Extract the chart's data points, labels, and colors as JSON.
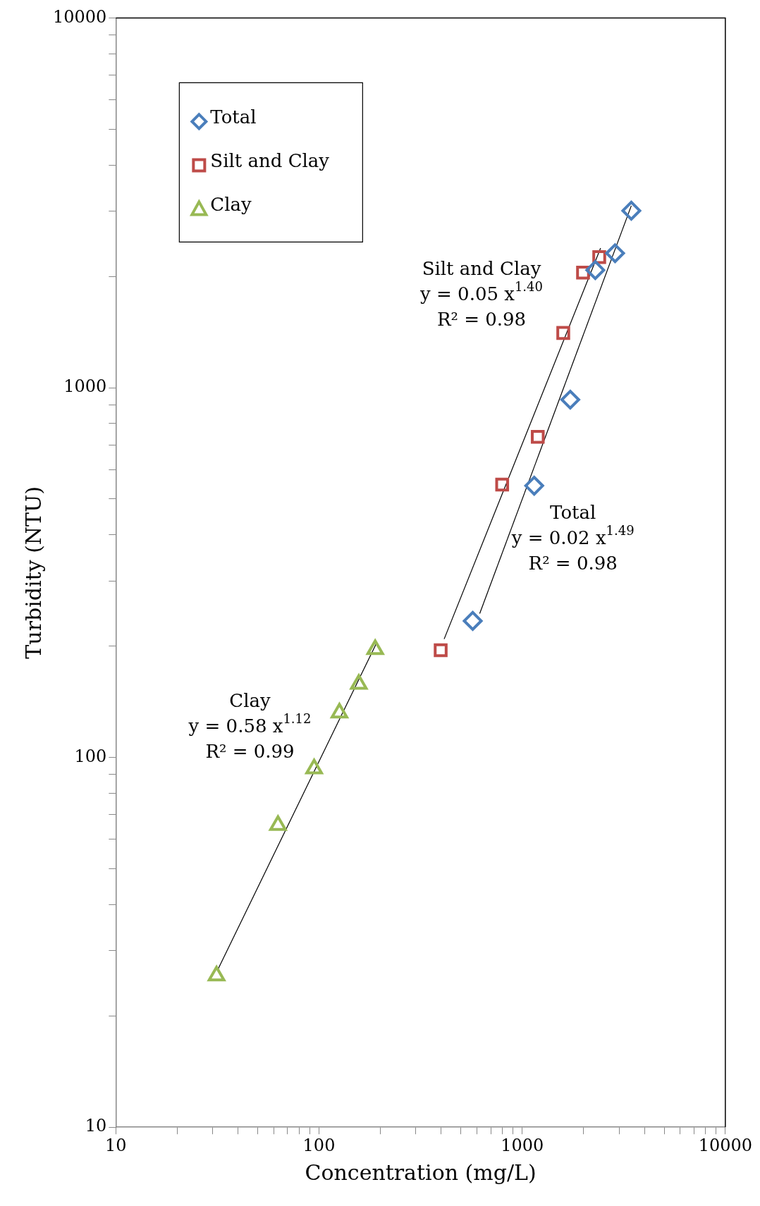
{
  "chart_data": {
    "type": "scatter",
    "xlabel": "Concentration (mg/L)",
    "ylabel": "Turbidity (NTU)",
    "xlim": [
      10,
      10000
    ],
    "ylim": [
      10,
      10000
    ],
    "log": "xy",
    "grid": false,
    "legend": "top left",
    "xticks": [
      10,
      {
        "value": 20,
        "label": null
      },
      {
        "value": 30,
        "label": null
      },
      {
        "value": 40,
        "label": null
      },
      {
        "value": 50,
        "label": null
      },
      {
        "value": 60,
        "label": null
      },
      {
        "value": 70,
        "label": null
      },
      {
        "value": 80,
        "label": null
      },
      {
        "value": 90,
        "label": null
      },
      100,
      {
        "value": 200,
        "label": null
      },
      {
        "value": 300,
        "label": null
      },
      {
        "value": 400,
        "label": null
      },
      {
        "value": 500,
        "label": null
      },
      {
        "value": 600,
        "label": null
      },
      {
        "value": 700,
        "label": null
      },
      {
        "value": 800,
        "label": null
      },
      {
        "value": 900,
        "label": null
      },
      1000,
      {
        "value": 2000,
        "label": null
      },
      {
        "value": 3000,
        "label": null
      },
      {
        "value": 4000,
        "label": null
      },
      {
        "value": 5000,
        "label": null
      },
      {
        "value": 6000,
        "label": null
      },
      {
        "value": 7000,
        "label": null
      },
      {
        "value": 8000,
        "label": null
      },
      {
        "value": 9000,
        "label": null
      },
      10000
    ],
    "yticks": [
      10,
      {
        "value": 20,
        "label": null
      },
      {
        "value": 30,
        "label": null
      },
      {
        "value": 40,
        "label": null
      },
      {
        "value": 50,
        "label": null
      },
      {
        "value": 60,
        "label": null
      },
      {
        "value": 70,
        "label": null
      },
      {
        "value": 80,
        "label": null
      },
      {
        "value": 90,
        "label": null
      },
      100,
      {
        "value": 200,
        "label": null
      },
      {
        "value": 300,
        "label": null
      },
      {
        "value": 400,
        "label": null
      },
      {
        "value": 500,
        "label": null
      },
      {
        "value": 600,
        "label": null
      },
      {
        "value": 700,
        "label": null
      },
      {
        "value": 800,
        "label": null
      },
      {
        "value": 900,
        "label": null
      },
      1000,
      {
        "value": 2000,
        "label": null
      },
      {
        "value": 3000,
        "label": null
      },
      {
        "value": 4000,
        "label": null
      },
      {
        "value": 5000,
        "label": null
      },
      {
        "value": 6000,
        "label": null
      },
      {
        "value": 7000,
        "label": null
      },
      {
        "value": 8000,
        "label": null
      },
      {
        "value": 9000,
        "label": null
      },
      10000
    ],
    "series": [
      {
        "name": "Total",
        "color": "#4a7ebb",
        "marker": "diamond",
        "x": [
          3445,
          2866,
          2290,
          1725,
          1146,
          571
        ],
        "values": [
          3010,
          2310,
          2080,
          928,
          543,
          234
        ]
      },
      {
        "name": "Silt and Clay",
        "color": "#be4b48",
        "marker": "square",
        "x": [
          2395,
          1993,
          1593,
          1193,
          797,
          397
        ],
        "values": [
          2255,
          2048,
          1406,
          736,
          547,
          195
        ]
      },
      {
        "name": "Clay",
        "color": "#98b954",
        "marker": "triangle",
        "x": [
          189,
          157,
          126,
          94.6,
          62.8,
          31.3
        ],
        "values": [
          196,
          158,
          132,
          93.3,
          65.6,
          25.7
        ]
      },
      {
        "type": "line",
        "color": "#000000",
        "marker": "none",
        "x": [
          618,
          3445
        ],
        "values": [
          245,
          3105
        ]
      },
      {
        "type": "line",
        "color": "#000000",
        "marker": "none",
        "x": [
          413,
          2432
        ],
        "values": [
          209,
          2385
        ]
      },
      {
        "type": "line",
        "color": "#000000",
        "marker": "none",
        "x": [
          31.9,
          192
        ],
        "values": [
          26.8,
          204
        ]
      }
    ],
    "annotations": [
      "Total\ny = 0.02 x$^{1.49}$\nR² = 0.98",
      "Silt and Clay\ny = 0.05 x$^{1.40}$\nR² = 0.98",
      "Clay\ny = 0.58 x$^{1.12}$\nR² = 0.99"
    ]
  }
}
